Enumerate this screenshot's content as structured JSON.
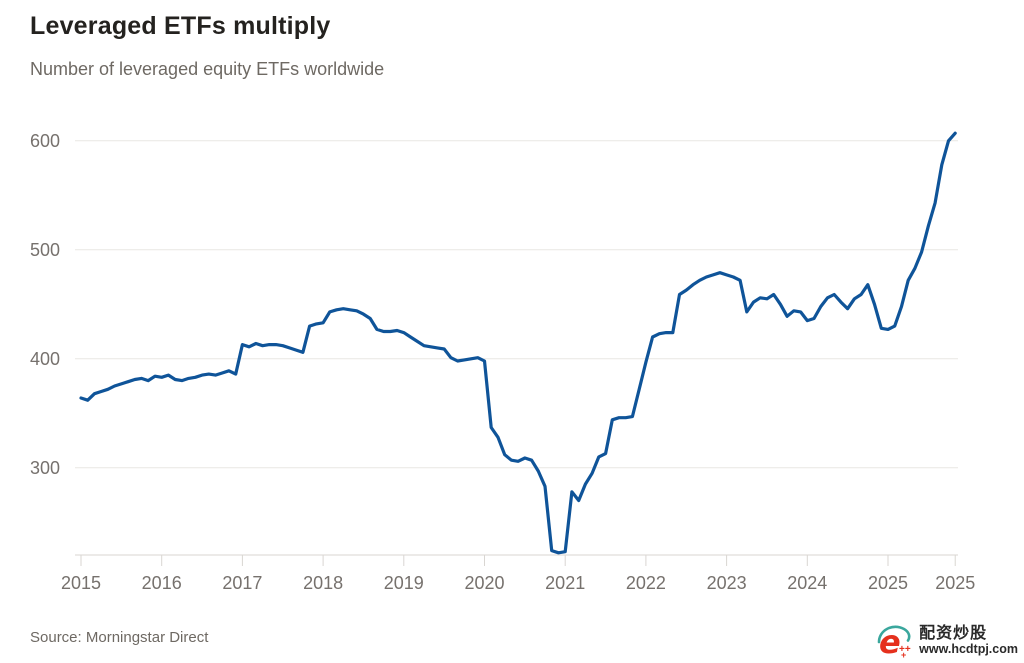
{
  "page": {
    "title": "Leveraged ETFs multiply",
    "subtitle": "Number of leveraged equity ETFs worldwide",
    "source": "Source: Morningstar Direct"
  },
  "watermark": {
    "site_name": "配资炒股",
    "site_url": "www.hcdtpj.com",
    "logo_letter": "e",
    "logo_red": "#e5301d",
    "logo_teal": "#3aa79d"
  },
  "chart_data": {
    "type": "line",
    "title": "Leveraged ETFs multiply",
    "subtitle": "Number of leveraged equity ETFs worldwide",
    "source": "Source: Morningstar Direct",
    "xlabel": "",
    "ylabel": "",
    "legend": "none",
    "grid": "horizontal-only",
    "line_color": "#0f5499",
    "grid_color": "#e9e7e4",
    "axis_color": "#d9d6d2",
    "axis_text_color": "#76716d",
    "ylim": [
      220,
      620
    ],
    "y_ticks": [
      300,
      400,
      500,
      600
    ],
    "x_start_year": 2015,
    "frequency": "monthly",
    "x_ticks": [
      {
        "label": "2015",
        "t": 2015
      },
      {
        "label": "2016",
        "t": 2016
      },
      {
        "label": "2017",
        "t": 2017
      },
      {
        "label": "2018",
        "t": 2018
      },
      {
        "label": "2019",
        "t": 2019
      },
      {
        "label": "2020",
        "t": 2020
      },
      {
        "label": "2021",
        "t": 2021
      },
      {
        "label": "2022",
        "t": 2022
      },
      {
        "label": "2023",
        "t": 2023
      },
      {
        "label": "2024",
        "t": 2024
      },
      {
        "label": "2025",
        "t": 2025
      },
      {
        "label": "2025",
        "t": 2025.833
      }
    ],
    "values": [
      364,
      362,
      368,
      370,
      372,
      375,
      377,
      379,
      381,
      382,
      380,
      384,
      383,
      385,
      381,
      380,
      382,
      383,
      385,
      386,
      385,
      387,
      389,
      386,
      413,
      411,
      414,
      412,
      413,
      413,
      412,
      410,
      408,
      406,
      430,
      432,
      433,
      443,
      445,
      446,
      445,
      444,
      441,
      437,
      427,
      425,
      425,
      426,
      424,
      420,
      416,
      412,
      411,
      410,
      409,
      401,
      398,
      399,
      400,
      401,
      398,
      337,
      328,
      312,
      307,
      306,
      309,
      307,
      297,
      283,
      224,
      222,
      223,
      278,
      270,
      285,
      295,
      310,
      313,
      344,
      346,
      346,
      347,
      372,
      397,
      420,
      423,
      424,
      424,
      459,
      463,
      468,
      472,
      475,
      477,
      479,
      477,
      475,
      472,
      443,
      452,
      456,
      455,
      459,
      450,
      439,
      444,
      443,
      435,
      437,
      448,
      456,
      459,
      452,
      446,
      455,
      459,
      468,
      450,
      428,
      427,
      430,
      448,
      472,
      483,
      498,
      522,
      543,
      578,
      600,
      607
    ]
  }
}
